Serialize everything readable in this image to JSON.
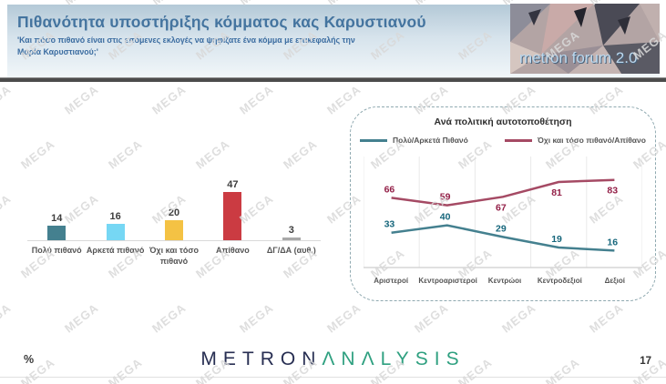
{
  "header": {
    "title": "Πιθανότητα υποστήριξης κόμματος κας Καρυστιανού",
    "subtitle": "'Και πόσο πιθανό είναι στις επόμενες εκλογές να ψηφίζατε ένα κόμμα με επικεφαλής την Μαρία Καρυστιανού;'"
  },
  "brand": {
    "forum_logo_text": "metron forum 2.0"
  },
  "watermark_text": "MEGA",
  "colors": {
    "header_title": "#44749f",
    "divider": "#4c4c4c",
    "panel_border": "#8fa9b0",
    "watermark": "#d9d9d9",
    "logo_navy": "#272e52",
    "logo_teal": "#2fa080"
  },
  "chart_data": [
    {
      "type": "bar",
      "title": "",
      "categories": [
        "Πολύ πιθανό",
        "Αρκετά πιθανό",
        "Όχι και τόσο πιθανό",
        "Απίθανο",
        "ΔΓ/ΔΑ (αυθ.)"
      ],
      "values": [
        14,
        16,
        20,
        47,
        3
      ],
      "bar_colors": [
        "#44808f",
        "#76d7f4",
        "#f4c244",
        "#cb3b42",
        "#a8a8a8"
      ],
      "ylim": [
        0,
        100
      ],
      "grid": false,
      "data_labels": true
    },
    {
      "type": "line",
      "title": "Ανά πολιτική αυτοτοποθέτηση",
      "categories": [
        "Αριστεροί",
        "Κεντροαριστεροί",
        "Κεντρώοι",
        "Κεντροδεξιοί",
        "Δεξιοί"
      ],
      "series": [
        {
          "name": "Πολύ/Αρκετά Πιθανό",
          "values": [
            33,
            40,
            29,
            19,
            16
          ],
          "color": "#44808f",
          "label_color": "#17677c",
          "label_position": [
            "above",
            "above",
            "above",
            "above",
            "above"
          ]
        },
        {
          "name": "Όχι και τόσο πιθανό/Απίθανο",
          "values": [
            66,
            59,
            67,
            81,
            83
          ],
          "color": "#a54a64",
          "label_color": "#931f47",
          "label_position": [
            "above",
            "above",
            "below",
            "below",
            "below"
          ]
        }
      ],
      "ylim": [
        0,
        100
      ],
      "grid": "vertical",
      "legend_position": "top",
      "data_labels": true
    }
  ],
  "footer": {
    "percent_label": "%",
    "logo_part1": "METRON",
    "logo_part2": "ANALYSIS",
    "page_number": "17"
  }
}
